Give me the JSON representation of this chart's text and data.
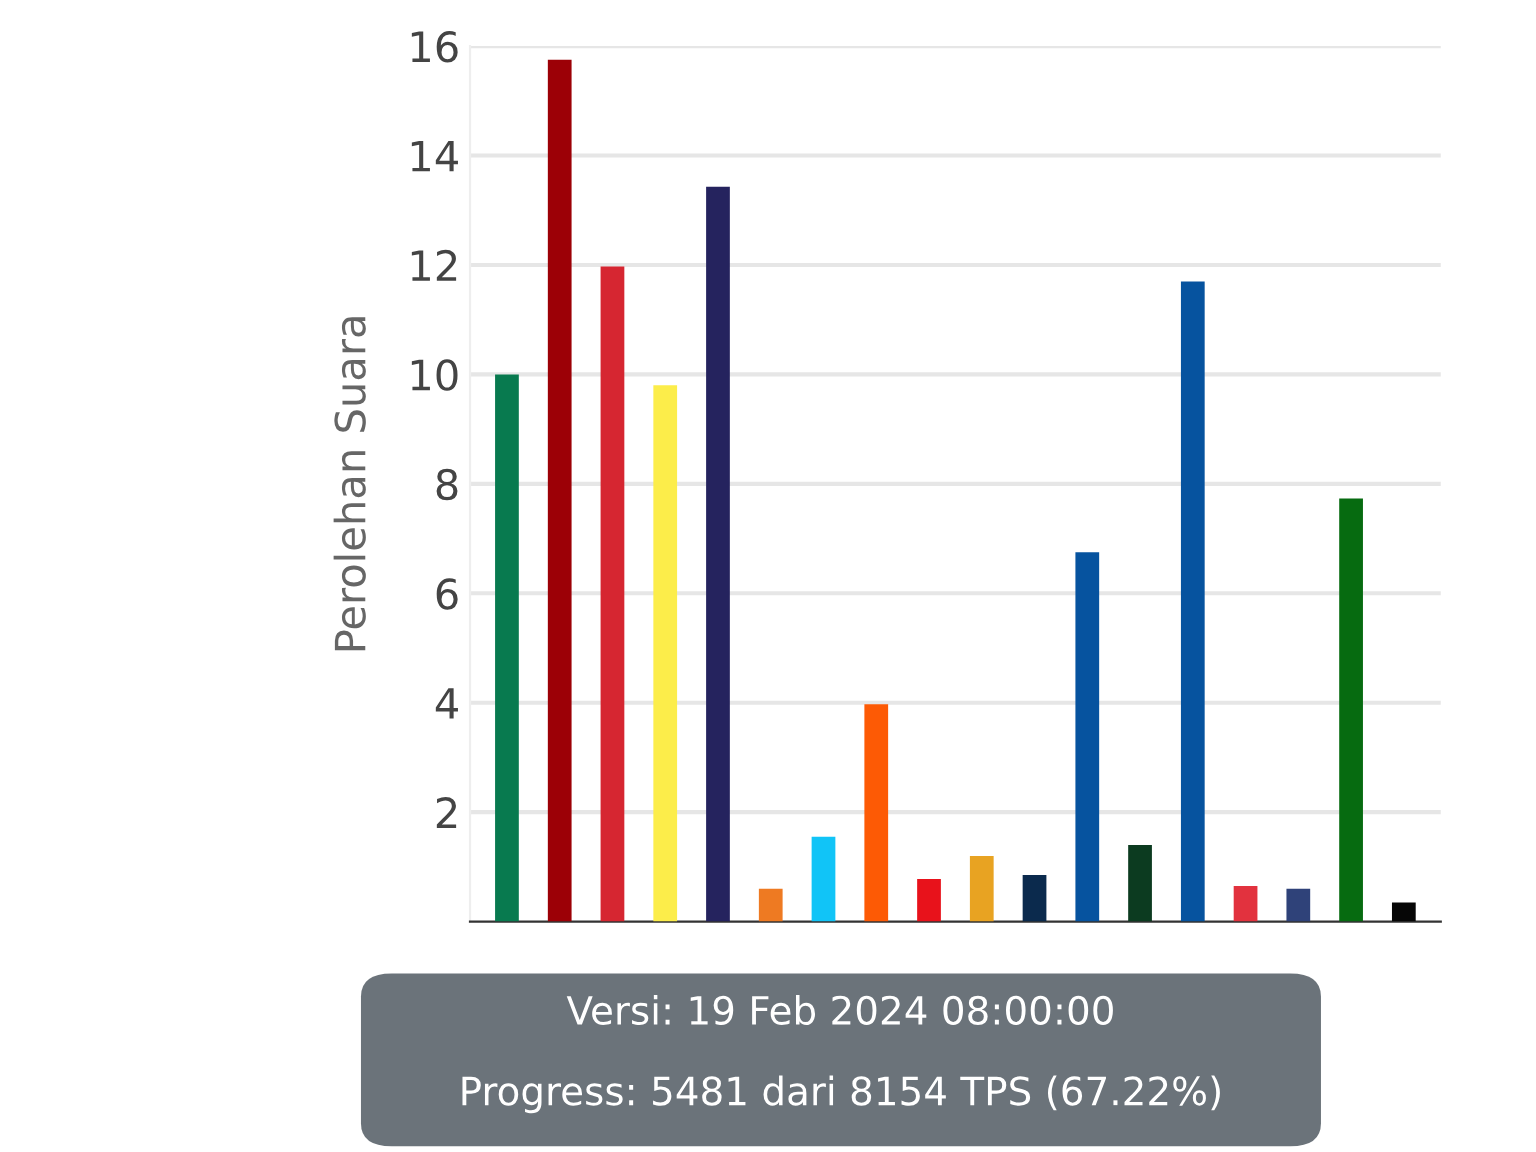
{
  "chart_data": {
    "type": "bar",
    "ylabel": "Perolehan Suara",
    "categories": [
      null,
      null,
      null,
      null,
      null,
      null,
      null,
      null,
      null,
      null,
      null,
      null,
      null,
      null,
      null,
      null,
      null,
      null
    ],
    "values": [
      10.0,
      15.75,
      11.97,
      9.8,
      13.43,
      0.6,
      1.55,
      3.97,
      0.78,
      1.2,
      0.85,
      6.75,
      1.4,
      11.7,
      0.65,
      0.6,
      7.73,
      0.35
    ],
    "colors": [
      "#087a4f",
      "#9c0006",
      "#d62631",
      "#fced4a",
      "#25235e",
      "#ee7a22",
      "#11c4f7",
      "#fd5a05",
      "#e8121b",
      "#e8a322",
      "#0b2a4d",
      "#06539f",
      "#0c3b20",
      "#06539f",
      "#e2323e",
      "#2f4279",
      "#066b10",
      "#060606"
    ],
    "ylim": [
      0,
      16
    ],
    "yticks": [
      2,
      4,
      6,
      8,
      10,
      12,
      14,
      16
    ],
    "grid": "y",
    "annotations": [
      "Versi: 19 Feb 2024 08:00:00",
      "Progress: 5481 dari 8154 TPS (67.22%)"
    ]
  }
}
